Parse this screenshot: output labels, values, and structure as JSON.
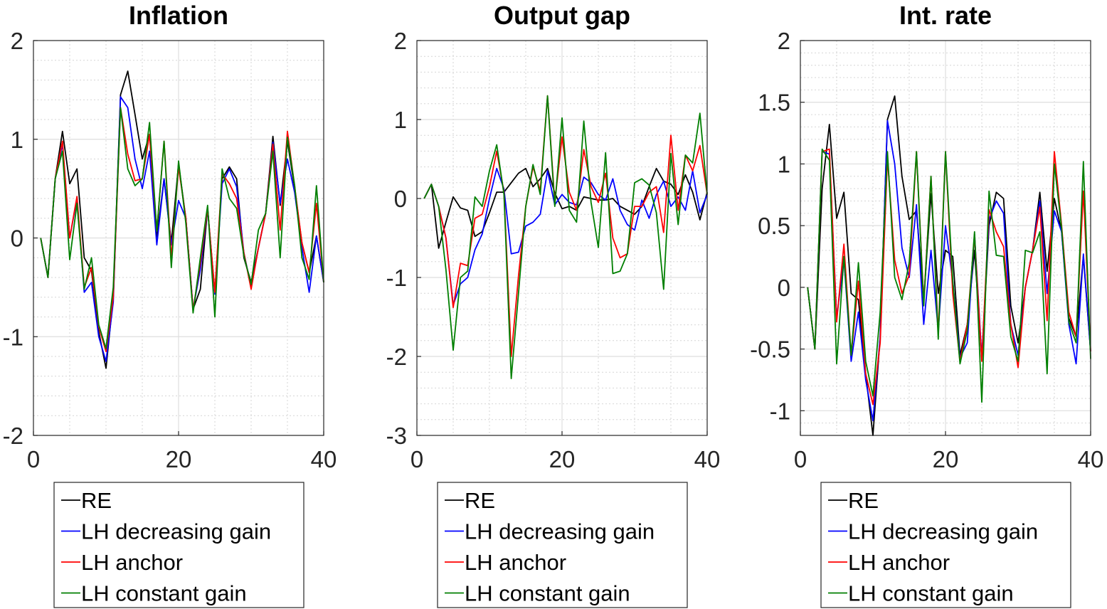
{
  "chart_data": [
    {
      "type": "line",
      "title": "Inflation",
      "xlim": [
        0,
        40
      ],
      "ylim": [
        -2,
        2
      ],
      "xticks": [
        0,
        20,
        40
      ],
      "yticks": [
        -2,
        -1,
        0,
        1,
        2
      ],
      "yticklabels": [
        "-2",
        "-1",
        "0",
        "1",
        "2"
      ],
      "grid": true,
      "minor_grid": true,
      "legend_position": "below",
      "x": [
        1,
        2,
        3,
        4,
        5,
        6,
        7,
        8,
        9,
        10,
        11,
        12,
        13,
        14,
        15,
        16,
        17,
        18,
        19,
        20,
        21,
        22,
        23,
        24,
        25,
        26,
        27,
        28,
        29,
        30,
        31,
        32,
        33,
        34,
        35,
        36,
        37,
        38,
        39,
        40
      ],
      "series": [
        {
          "name": "RE",
          "color": "#000000",
          "values": [
            0,
            -0.4,
            0.6,
            1.08,
            0.55,
            0.7,
            -0.2,
            -0.33,
            -0.95,
            -1.32,
            -0.6,
            1.45,
            1.69,
            1.25,
            0.8,
            1.05,
            0,
            0.6,
            -0.05,
            0.75,
            0.2,
            -0.72,
            -0.52,
            0.3,
            -0.55,
            0.6,
            0.72,
            0.6,
            -0.2,
            -0.45,
            -0.1,
            0.25,
            1.03,
            0.33,
            0.98,
            0.5,
            -0.05,
            -0.35,
            0.02,
            -0.45
          ]
        },
        {
          "name": "LH decreasing gain",
          "color": "#0000ff",
          "values": [
            0,
            -0.4,
            0.6,
            0.95,
            0,
            0.4,
            -0.55,
            -0.45,
            -1.0,
            -1.25,
            -0.65,
            1.43,
            1.32,
            0.8,
            0.5,
            0.88,
            -0.07,
            0.6,
            -0.07,
            0.38,
            0.2,
            -0.72,
            -0.32,
            0.3,
            -0.57,
            0.55,
            0.7,
            0.52,
            -0.15,
            -0.5,
            -0.1,
            0.25,
            0.97,
            0.35,
            0.8,
            0.46,
            -0.1,
            -0.55,
            0.02,
            -0.45
          ]
        },
        {
          "name": "LH anchor",
          "color": "#ff0000",
          "values": [
            0,
            -0.4,
            0.6,
            0.98,
            0,
            0.42,
            -0.5,
            -0.3,
            -0.9,
            -1.15,
            -0.6,
            1.32,
            0.85,
            0.58,
            0.6,
            1.05,
            0.07,
            0.98,
            -0.2,
            0.72,
            0.2,
            -0.73,
            -0.25,
            0.3,
            -0.55,
            0.65,
            0.55,
            0.4,
            -0.15,
            -0.52,
            -0.1,
            0.25,
            0.95,
            0.08,
            1.08,
            0.52,
            -0.05,
            -0.35,
            0.35,
            -0.45
          ]
        },
        {
          "name": "LH constant gain",
          "color": "#007f00",
          "values": [
            0,
            -0.4,
            0.6,
            0.88,
            -0.22,
            0.35,
            -0.52,
            -0.2,
            -0.88,
            -1.12,
            -0.5,
            1.32,
            0.7,
            0.53,
            0.6,
            1.17,
            0.07,
            0.98,
            -0.3,
            0.78,
            0.15,
            -0.76,
            -0.2,
            0.33,
            -0.8,
            0.7,
            0.4,
            0.3,
            -0.18,
            -0.47,
            0.08,
            0.25,
            0.88,
            -0.2,
            1.02,
            0.53,
            -0.2,
            -0.42,
            0.53,
            -0.45
          ]
        }
      ]
    },
    {
      "type": "line",
      "title": "Output gap",
      "xlim": [
        0,
        40
      ],
      "ylim": [
        -3,
        2
      ],
      "xticks": [
        0,
        20,
        40
      ],
      "yticks": [
        -3,
        -2,
        -1,
        0,
        1,
        2
      ],
      "yticklabels": [
        "-3",
        "-2",
        "-1",
        "0",
        "1",
        "2"
      ],
      "grid": true,
      "minor_grid": true,
      "legend_position": "below",
      "x": [
        1,
        2,
        3,
        4,
        5,
        6,
        7,
        8,
        9,
        10,
        11,
        12,
        13,
        14,
        15,
        16,
        17,
        18,
        19,
        20,
        21,
        22,
        23,
        24,
        25,
        26,
        27,
        28,
        29,
        30,
        31,
        32,
        33,
        34,
        35,
        36,
        37,
        38,
        39,
        40
      ],
      "series": [
        {
          "name": "RE",
          "color": "#000000",
          "values": [
            0,
            0.18,
            -0.63,
            -0.3,
            0.02,
            -0.12,
            -0.15,
            -0.48,
            -0.42,
            -0.18,
            0.08,
            0.08,
            0.2,
            0.32,
            0.38,
            0.15,
            0.25,
            0.38,
            0.07,
            -0.13,
            -0.1,
            -0.15,
            0.02,
            0,
            -0.02,
            -0.02,
            0,
            -0.1,
            -0.15,
            -0.2,
            -0.1,
            0.15,
            0.38,
            0.22,
            0.18,
            0.05,
            0.3,
            0.08,
            -0.27,
            0.08
          ]
        },
        {
          "name": "LH decreasing gain",
          "color": "#0000ff",
          "values": [
            0,
            0.18,
            -0.1,
            -0.5,
            -1.35,
            -1.08,
            -1.0,
            -0.65,
            -0.45,
            0,
            0.38,
            0.12,
            -0.7,
            -0.68,
            -0.35,
            -0.3,
            -0.2,
            0.35,
            -0.08,
            0.05,
            -0.05,
            -0.08,
            0.27,
            0.2,
            0.05,
            -0.02,
            0.25,
            -0.15,
            -0.33,
            -0.4,
            -0.02,
            -0.25,
            0.05,
            0.22,
            -0.1,
            0.02,
            -0.15,
            0.35,
            -0.18,
            0.05
          ]
        },
        {
          "name": "LH anchor",
          "color": "#ff0000",
          "values": [
            0,
            0.18,
            -0.1,
            -0.5,
            -1.38,
            -0.82,
            -0.85,
            -0.25,
            -0.2,
            0.15,
            0.6,
            0.08,
            -2.0,
            -0.98,
            -0.1,
            0.4,
            0.1,
            1.3,
            -0.05,
            0.78,
            0.08,
            -0.15,
            0.62,
            0.15,
            -0.05,
            0.32,
            -0.5,
            -0.75,
            -0.7,
            -0.1,
            -0.1,
            0.08,
            0.15,
            -0.43,
            0.8,
            -0.15,
            0.55,
            0.35,
            0.67,
            0.05
          ]
        },
        {
          "name": "LH constant gain",
          "color": "#007f00",
          "values": [
            0,
            0.18,
            -0.1,
            -0.9,
            -1.92,
            -1.0,
            -0.92,
            0.02,
            -0.1,
            0.35,
            0.68,
            0.05,
            -2.28,
            -1.2,
            -0.1,
            0.43,
            0.05,
            1.3,
            -0.1,
            1.02,
            -0.15,
            -0.3,
            0.98,
            -0.05,
            -0.62,
            0.58,
            -0.95,
            -0.92,
            -0.7,
            0.2,
            0.25,
            0.17,
            -0.18,
            -1.15,
            0.57,
            -0.33,
            0.55,
            0.45,
            1.08,
            0.05
          ]
        }
      ]
    },
    {
      "type": "line",
      "title": "Int. rate",
      "xlim": [
        0,
        40
      ],
      "ylim": [
        -1.2,
        2
      ],
      "xticks": [
        0,
        20,
        40
      ],
      "yticks": [
        -1,
        -0.5,
        0,
        0.5,
        1,
        1.5,
        2
      ],
      "yticklabels": [
        "-1",
        "-0.5",
        "0",
        "0.5",
        "1",
        "1.5",
        "2"
      ],
      "grid": true,
      "minor_grid": true,
      "legend_position": "below",
      "x": [
        1,
        2,
        3,
        4,
        5,
        6,
        7,
        8,
        9,
        10,
        11,
        12,
        13,
        14,
        15,
        16,
        17,
        18,
        19,
        20,
        21,
        22,
        23,
        24,
        25,
        26,
        27,
        28,
        29,
        30,
        31,
        32,
        33,
        34,
        35,
        36,
        37,
        38,
        39,
        40
      ],
      "series": [
        {
          "name": "RE",
          "color": "#000000",
          "values": [
            0,
            -0.5,
            0.8,
            1.32,
            0.56,
            0.77,
            -0.05,
            -0.1,
            -0.7,
            -1.2,
            -0.4,
            1.36,
            1.55,
            0.9,
            0.55,
            0.62,
            -0.1,
            0.76,
            -0.05,
            0.3,
            0.25,
            -0.55,
            -0.3,
            0.3,
            -0.58,
            0.5,
            0.77,
            0.72,
            -0.15,
            -0.45,
            0,
            0.3,
            0.77,
            0.13,
            0.72,
            0.45,
            -0.25,
            -0.4,
            0.25,
            -0.52
          ]
        },
        {
          "name": "LH decreasing gain",
          "color": "#0000ff",
          "values": [
            0,
            -0.5,
            1.1,
            1.08,
            -0.25,
            0.23,
            -0.6,
            -0.2,
            -0.75,
            -1.08,
            -0.4,
            1.35,
            1.0,
            0.32,
            0.08,
            0.67,
            -0.3,
            0.3,
            -0.35,
            0.5,
            0.05,
            -0.57,
            -0.45,
            0.43,
            -0.57,
            0.55,
            0.7,
            0.6,
            -0.3,
            -0.55,
            0,
            0.3,
            0.7,
            -0.05,
            0.62,
            0.45,
            -0.3,
            -0.62,
            0.27,
            -0.52
          ]
        },
        {
          "name": "LH anchor",
          "color": "#ff0000",
          "values": [
            0,
            -0.5,
            1.1,
            1.12,
            -0.28,
            0.35,
            -0.55,
            0.05,
            -0.7,
            -0.95,
            -0.45,
            1.05,
            0.22,
            -0.05,
            0.1,
            1.1,
            -0.12,
            0.9,
            -0.38,
            1.1,
            -0.05,
            -0.6,
            -0.3,
            0.42,
            -0.6,
            0.63,
            0.45,
            0.33,
            -0.3,
            -0.65,
            0,
            0.3,
            0.65,
            -0.27,
            1.1,
            0.5,
            -0.2,
            -0.4,
            0.78,
            -0.52
          ]
        },
        {
          "name": "LH constant gain",
          "color": "#007f00",
          "values": [
            0,
            -0.5,
            1.12,
            1.03,
            -0.62,
            0.25,
            -0.55,
            0.2,
            -0.6,
            -0.88,
            -0.2,
            1.1,
            0.08,
            -0.1,
            0.2,
            1.1,
            -0.15,
            0.9,
            -0.42,
            1.1,
            0.05,
            -0.62,
            -0.35,
            0.45,
            -0.93,
            0.78,
            0.26,
            0.25,
            -0.4,
            -0.6,
            0.3,
            0.28,
            0.45,
            -0.7,
            1.0,
            0.48,
            -0.28,
            -0.45,
            1.02,
            -0.58
          ]
        }
      ]
    }
  ]
}
